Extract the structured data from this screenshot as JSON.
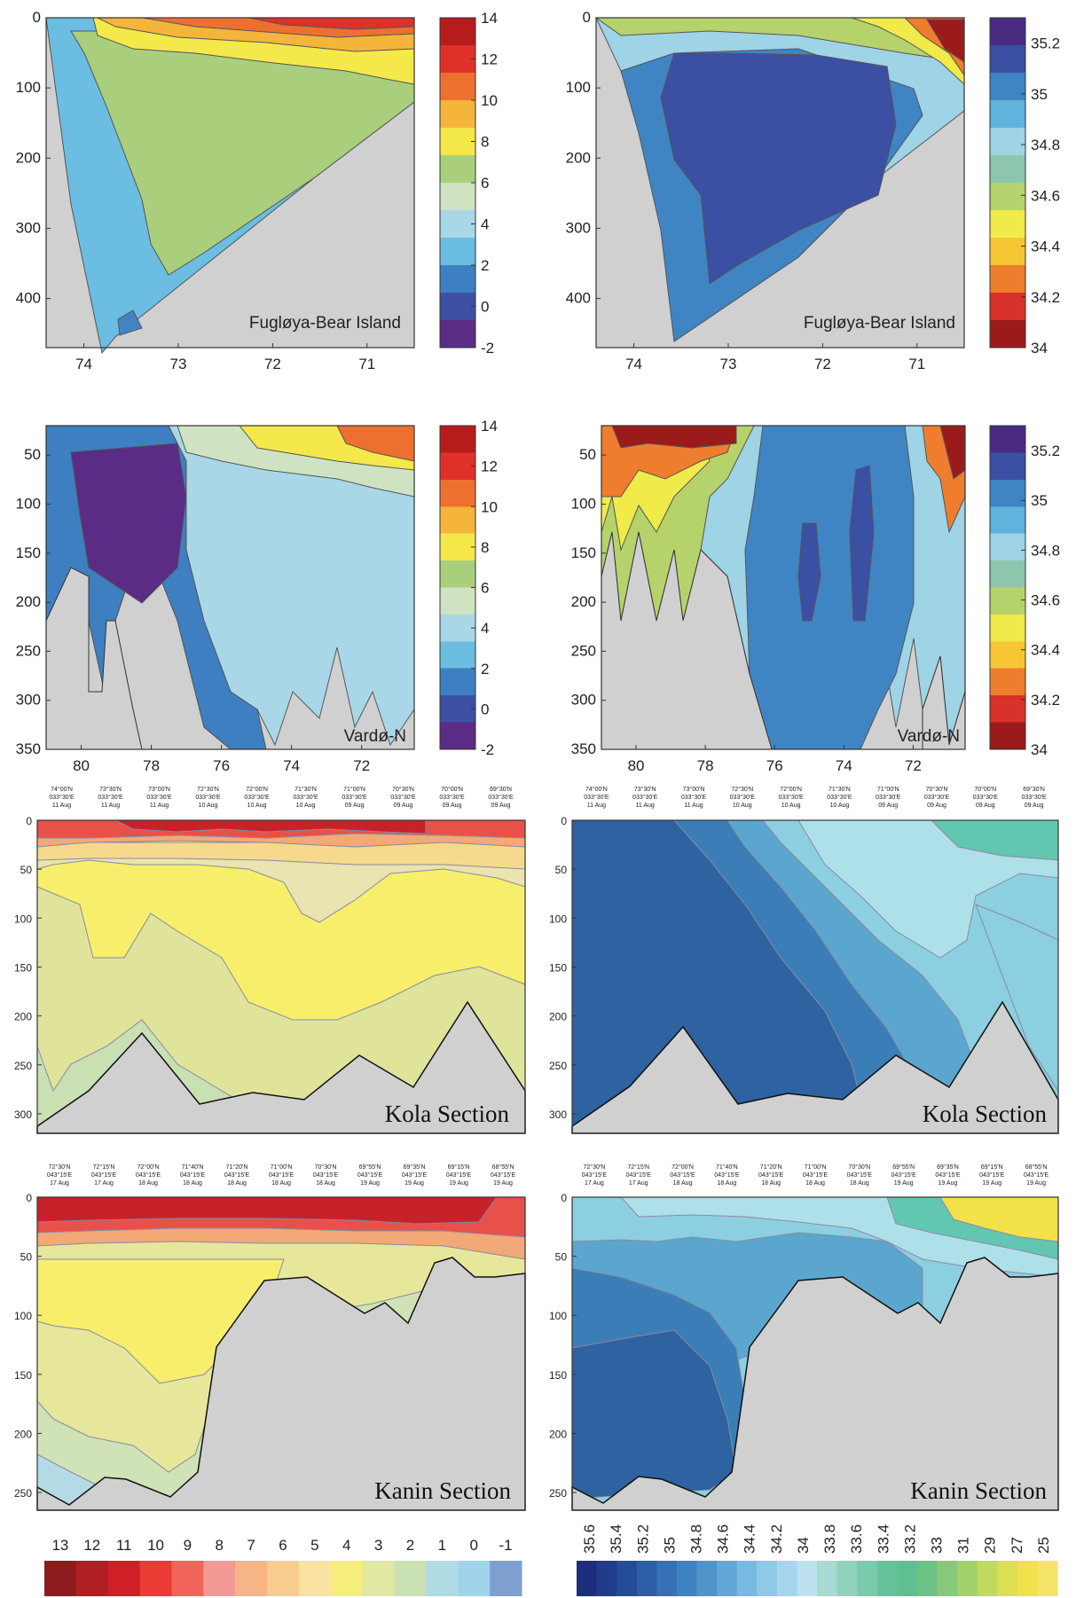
{
  "colors": {
    "temperature": [
      "#5a2c86",
      "#3f4fa3",
      "#3d7fc0",
      "#6bbde2",
      "#a9d7e8",
      "#cfe3c2",
      "#a9cf7d",
      "#f5e84a",
      "#f4b53a",
      "#ee7030",
      "#e0302a",
      "#b71c1c"
    ],
    "salinity": [
      "#9b1b1b",
      "#d8322b",
      "#ef7d2e",
      "#f6c634",
      "#f0ea4a",
      "#b6d26b",
      "#8ec6ad",
      "#9fd3e6",
      "#5fb3dc",
      "#3f85c4",
      "#3b4fa3",
      "#4a2b82"
    ],
    "land": "#d0d0d0",
    "kola_temp": [
      "#f7ef6c",
      "#dfe49a",
      "#c9e0b3",
      "#e9e4b0",
      "#f6d98c",
      "#f3a877",
      "#e8504a",
      "#c7222a"
    ],
    "kola_sal": [
      "#2e62a0",
      "#3b7db7",
      "#5aa6cf",
      "#8ccfe0",
      "#aee0ea",
      "#62c7b0",
      "#4fbf9e"
    ],
    "kanin_temp": [
      "#f7ef6c",
      "#e6e79a",
      "#cfe3b7",
      "#b4dbe5",
      "#f3a877",
      "#e8504a",
      "#c7222a"
    ],
    "kanin_sal": [
      "#2e62a0",
      "#3b7db7",
      "#5aa6cf",
      "#8ccfe0",
      "#aee0ea",
      "#62c7b0",
      "#f4e24a"
    ],
    "legend_temp": [
      "#8e1b1e",
      "#b01f24",
      "#cf2027",
      "#ea3b35",
      "#f0645a",
      "#f39a97",
      "#f6b587",
      "#f8cc8e",
      "#f9e2a3",
      "#f6ee7b",
      "#e0e8a1",
      "#c9e1b3",
      "#b0dbe4",
      "#9fd4ea",
      "#7f9fd1"
    ],
    "legend_sal": [
      "#1d2f7a",
      "#213c8a",
      "#264c99",
      "#2d5ea8",
      "#3670b6",
      "#3f82c2",
      "#4f95cc",
      "#62a8d6",
      "#78badf",
      "#8ec9e6",
      "#a5d6eb",
      "#bde1ee",
      "#a7dad0",
      "#8fd2bd",
      "#78cbab",
      "#66c39c",
      "#5fbf8f",
      "#6cc385",
      "#86ca79",
      "#a2d16c",
      "#c0d95f",
      "#dcdf54",
      "#f0e14d",
      "#f5e36a"
    ]
  },
  "chart_data": [
    {
      "id": "fugloya-temp",
      "type": "heatmap",
      "annotation": "Fugløya-Bear Island",
      "x_ticks": [
        "74",
        "73",
        "72",
        "71"
      ],
      "y_ticks": [
        "0",
        "100",
        "200",
        "300",
        "400"
      ],
      "colorbar_ticks": [
        "14",
        "12",
        "10",
        "8",
        "6",
        "4",
        "2",
        "0",
        "-2"
      ],
      "colorbar_range": [
        -2,
        14
      ]
    },
    {
      "id": "fugloya-sal",
      "type": "heatmap",
      "annotation": "Fugløya-Bear Island",
      "x_ticks": [
        "74",
        "73",
        "72",
        "71"
      ],
      "y_ticks": [
        "0",
        "100",
        "200",
        "300",
        "400"
      ],
      "colorbar_ticks": [
        "35.2",
        "35",
        "34.8",
        "34.6",
        "34.4",
        "34.2",
        "34"
      ],
      "colorbar_range": [
        34,
        35.3
      ]
    },
    {
      "id": "vardo-temp",
      "type": "heatmap",
      "annotation": "Vardø-N",
      "x_ticks": [
        "80",
        "78",
        "76",
        "74",
        "72"
      ],
      "y_ticks": [
        "50",
        "100",
        "150",
        "200",
        "250",
        "300",
        "350"
      ],
      "colorbar_ticks": [
        "14",
        "12",
        "10",
        "8",
        "6",
        "4",
        "2",
        "0",
        "-2"
      ],
      "colorbar_range": [
        -2,
        14
      ]
    },
    {
      "id": "vardo-sal",
      "type": "heatmap",
      "annotation": "Vardø-N",
      "x_ticks": [
        "80",
        "78",
        "76",
        "74",
        "72"
      ],
      "y_ticks": [
        "50",
        "100",
        "150",
        "200",
        "250",
        "300",
        "350"
      ],
      "colorbar_ticks": [
        "35.2",
        "35",
        "34.8",
        "34.6",
        "34.4",
        "34.2",
        "34"
      ],
      "colorbar_range": [
        34,
        35.3
      ]
    },
    {
      "id": "kola-temp",
      "type": "heatmap",
      "annotation": "Kola Section",
      "y_ticks": [
        "0",
        "50",
        "100",
        "150",
        "200",
        "250",
        "300"
      ],
      "stations": [
        [
          "74°00'N",
          "033°30'E",
          "11 Aug"
        ],
        [
          "73°30'N",
          "033°30'E",
          "11 Aug"
        ],
        [
          "73°00'N",
          "033°30'E",
          "11 Aug"
        ],
        [
          "72°30'N",
          "033°30'E",
          "10 Aug"
        ],
        [
          "72°00'N",
          "033°30'E",
          "10 Aug"
        ],
        [
          "71°30'N",
          "033°30'E",
          "10 Aug"
        ],
        [
          "71°00'N",
          "033°30'E",
          "09 Aug"
        ],
        [
          "70°30'N",
          "033°30'E",
          "09 Aug"
        ],
        [
          "70°00'N",
          "033°30'E",
          "09 Aug"
        ],
        [
          "69°30'N",
          "033°30'E",
          "09 Aug"
        ]
      ]
    },
    {
      "id": "kola-sal",
      "type": "heatmap",
      "annotation": "Kola Section",
      "y_ticks": [
        "0",
        "50",
        "100",
        "150",
        "200",
        "250",
        "300"
      ],
      "stations": [
        [
          "74°00'N",
          "033°30'E",
          "11 Aug"
        ],
        [
          "73°30'N",
          "033°30'E",
          "11 Aug"
        ],
        [
          "73°00'N",
          "033°30'E",
          "11 Aug"
        ],
        [
          "72°30'N",
          "033°30'E",
          "10 Aug"
        ],
        [
          "72°00'N",
          "033°30'E",
          "10 Aug"
        ],
        [
          "71°30'N",
          "033°30'E",
          "10 Aug"
        ],
        [
          "71°00'N",
          "033°30'E",
          "09 Aug"
        ],
        [
          "70°30'N",
          "033°30'E",
          "09 Aug"
        ],
        [
          "70°00'N",
          "033°30'E",
          "09 Aug"
        ],
        [
          "69°30'N",
          "033°30'E",
          "09 Aug"
        ]
      ]
    },
    {
      "id": "kanin-temp",
      "type": "heatmap",
      "annotation": "Kanin Section",
      "y_ticks": [
        "0",
        "50",
        "100",
        "150",
        "200",
        "250"
      ],
      "stations": [
        [
          "72°30'N",
          "043°15'E",
          "17 Aug"
        ],
        [
          "72°15'N",
          "043°15'E",
          "17 Aug"
        ],
        [
          "72°00'N",
          "043°15'E",
          "18 Aug"
        ],
        [
          "71°40'N",
          "043°15'E",
          "18 Aug"
        ],
        [
          "71°20'N",
          "043°15'E",
          "18 Aug"
        ],
        [
          "71°00'N",
          "043°15'E",
          "18 Aug"
        ],
        [
          "70°30'N",
          "043°15'E",
          "18 Aug"
        ],
        [
          "69°55'N",
          "043°15'E",
          "19 Aug"
        ],
        [
          "69°35'N",
          "043°15'E",
          "19 Aug"
        ],
        [
          "69°15'N",
          "043°15'E",
          "19 Aug"
        ],
        [
          "68°55'N",
          "043°15'E",
          "19 Aug"
        ]
      ]
    },
    {
      "id": "kanin-sal",
      "type": "heatmap",
      "annotation": "Kanin Section",
      "y_ticks": [
        "0",
        "50",
        "100",
        "150",
        "200",
        "250"
      ],
      "stations": [
        [
          "72°30'N",
          "043°15'E",
          "17 Aug"
        ],
        [
          "72°15'N",
          "043°15'E",
          "17 Aug"
        ],
        [
          "72°00'N",
          "043°15'E",
          "18 Aug"
        ],
        [
          "71°40'N",
          "043°15'E",
          "18 Aug"
        ],
        [
          "71°20'N",
          "043°15'E",
          "18 Aug"
        ],
        [
          "71°00'N",
          "043°15'E",
          "18 Aug"
        ],
        [
          "70°30'N",
          "043°15'E",
          "18 Aug"
        ],
        [
          "69°55'N",
          "043°15'E",
          "19 Aug"
        ],
        [
          "69°35'N",
          "043°15'E",
          "19 Aug"
        ],
        [
          "69°15'N",
          "043°15'E",
          "19 Aug"
        ],
        [
          "68°55'N",
          "043°15'E",
          "19 Aug"
        ]
      ]
    },
    {
      "id": "legend-temp",
      "type": "heatmap",
      "ticks": [
        "13",
        "12",
        "11",
        "10",
        "9",
        "8",
        "7",
        "6",
        "5",
        "4",
        "3",
        "2",
        "1",
        "0",
        "-1"
      ]
    },
    {
      "id": "legend-sal",
      "type": "heatmap",
      "ticks": [
        "35.6",
        "35.4",
        "35.2",
        "35",
        "34.8",
        "34.6",
        "34.4",
        "34.2",
        "34",
        "33.8",
        "33.6",
        "33.4",
        "33.2",
        "33",
        "31",
        "29",
        "27",
        "25"
      ]
    }
  ]
}
